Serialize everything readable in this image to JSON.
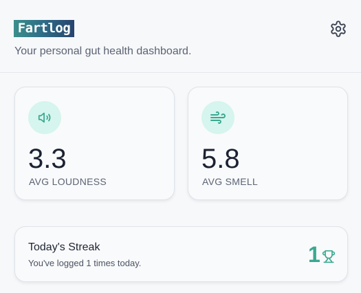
{
  "header": {
    "logo_text": "Fartlog",
    "subtitle": "Your personal gut health dashboard.",
    "settings_icon": "gear-icon"
  },
  "stats": [
    {
      "icon": "volume-icon",
      "value": "3.3",
      "label": "AVG LOUDNESS"
    },
    {
      "icon": "wind-icon",
      "value": "5.8",
      "label": "AVG SMELL"
    }
  ],
  "streak": {
    "title": "Today's Streak",
    "subtitle": "You've logged 1 times today.",
    "count": "1",
    "icon": "trophy-icon"
  },
  "colors": {
    "accent": "#3aa890",
    "icon_bg": "#d5f5ee",
    "text_muted": "#5b6373"
  }
}
